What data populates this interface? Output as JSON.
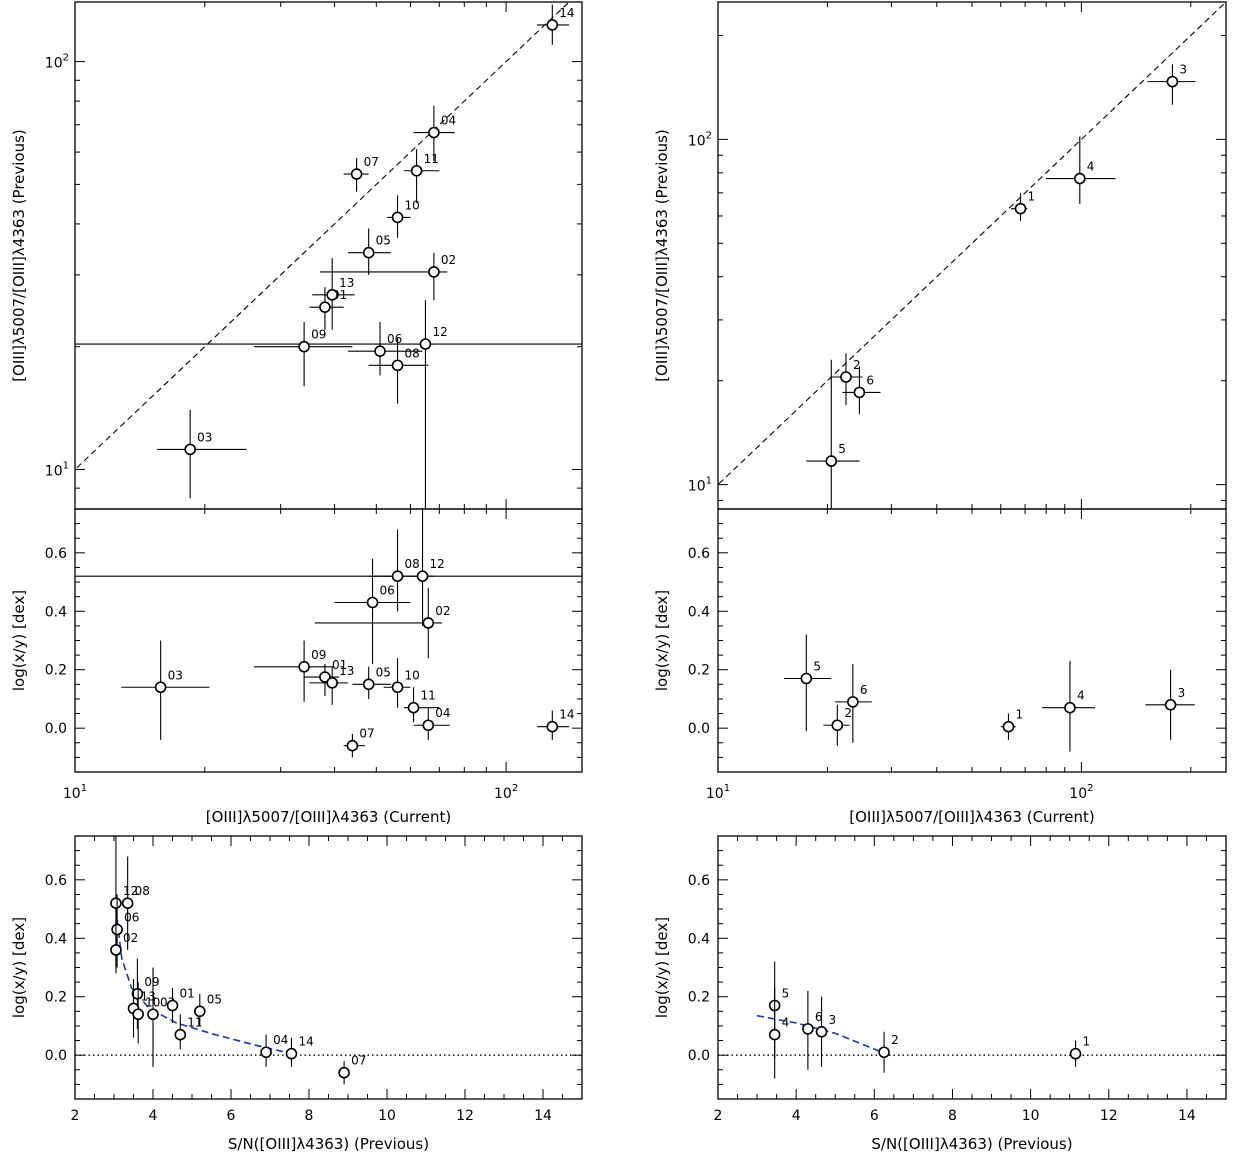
{
  "chart_data": [
    {
      "id": "TL",
      "type": "scatter",
      "xlabel": "",
      "ylabel": "[OIII]λ5007/[OIII]λ4363 (Previous)",
      "xscale": "log",
      "yscale": "log",
      "xlim": [
        10,
        150
      ],
      "ylim": [
        8,
        140
      ],
      "xticks_major": [],
      "xtick_labels": [],
      "yticks_major": [
        10,
        100
      ],
      "ytick_labels": [
        [
          "10",
          "1"
        ],
        [
          "10",
          "2"
        ]
      ],
      "reference_line": "y=x (dashed)",
      "points": [
        {
          "label": "03",
          "x": 18.5,
          "y": 11.2,
          "xlo": 15.5,
          "xhi": 25,
          "ylo": 8.5,
          "yhi": 14
        },
        {
          "label": "09",
          "x": 34,
          "y": 20,
          "xlo": 26,
          "xhi": 44,
          "ylo": 16,
          "yhi": 23
        },
        {
          "label": "06",
          "x": 51,
          "y": 19.5,
          "xlo": 43,
          "xhi": 64,
          "ylo": 17,
          "yhi": 23
        },
        {
          "label": "08",
          "x": 56,
          "y": 18,
          "xlo": 48,
          "xhi": 66,
          "ylo": 14.5,
          "yhi": 21
        },
        {
          "label": "12",
          "x": 65,
          "y": 20.3,
          "xlo": 62,
          "xhi": 68,
          "ylo": 8,
          "yhi": 26
        },
        {
          "label": "01",
          "x": 38,
          "y": 25,
          "xlo": 35,
          "xhi": 42,
          "ylo": 22,
          "yhi": 28
        },
        {
          "label": "13",
          "x": 39.5,
          "y": 26.8,
          "xlo": 35.5,
          "xhi": 44.5,
          "ylo": 22,
          "yhi": 33
        },
        {
          "label": "02",
          "x": 68,
          "y": 30.5,
          "xlo": 37,
          "xhi": 73,
          "ylo": 26,
          "yhi": 34
        },
        {
          "label": "05",
          "x": 48,
          "y": 34,
          "xlo": 43,
          "xhi": 54,
          "ylo": 30,
          "yhi": 39
        },
        {
          "label": "10",
          "x": 56,
          "y": 41.5,
          "xlo": 53,
          "xhi": 60,
          "ylo": 37,
          "yhi": 47
        },
        {
          "label": "07",
          "x": 45,
          "y": 53,
          "xlo": 42,
          "xhi": 48,
          "ylo": 48,
          "yhi": 58
        },
        {
          "label": "11",
          "x": 62,
          "y": 54,
          "xlo": 58,
          "xhi": 70,
          "ylo": 45,
          "yhi": 61
        },
        {
          "label": "04",
          "x": 68,
          "y": 67,
          "xlo": 61,
          "xhi": 76,
          "ylo": 57,
          "yhi": 78
        },
        {
          "label": "14",
          "x": 128,
          "y": 123,
          "xlo": 118,
          "xhi": 140,
          "ylo": 110,
          "yhi": 138
        }
      ]
    },
    {
      "id": "TR",
      "type": "scatter",
      "xlabel": "",
      "ylabel": "[OIII]λ5007/[OIII]λ4363 (Previous)",
      "xscale": "log",
      "yscale": "log",
      "xlim": [
        10,
        250
      ],
      "ylim": [
        8.5,
        250
      ],
      "xticks_major": [],
      "xtick_labels": [],
      "yticks_major": [
        10,
        100
      ],
      "ytick_labels": [
        [
          "10",
          "1"
        ],
        [
          "10",
          "2"
        ]
      ],
      "reference_line": "y=x (dashed)",
      "points": [
        {
          "label": "5",
          "x": 20.5,
          "y": 11.7,
          "xlo": 17.5,
          "xhi": 24.5,
          "ylo": 8.5,
          "yhi": 23
        },
        {
          "label": "2",
          "x": 22.5,
          "y": 20.5,
          "xlo": 20.5,
          "xhi": 25,
          "ylo": 17,
          "yhi": 24
        },
        {
          "label": "6",
          "x": 24.5,
          "y": 18.5,
          "xlo": 22,
          "xhi": 28,
          "ylo": 16,
          "yhi": 22
        },
        {
          "label": "1",
          "x": 68,
          "y": 63,
          "xlo": 64,
          "xhi": 71,
          "ylo": 58,
          "yhi": 70
        },
        {
          "label": "4",
          "x": 99,
          "y": 77,
          "xlo": 80,
          "xhi": 124,
          "ylo": 65,
          "yhi": 102
        },
        {
          "label": "3",
          "x": 178,
          "y": 147,
          "xlo": 152,
          "xhi": 206,
          "ylo": 126,
          "yhi": 165
        }
      ]
    },
    {
      "id": "ML",
      "type": "scatter",
      "xlabel": "[OIII]λ5007/[OIII]λ4363 (Current)",
      "ylabel": "log(x/y) [dex]",
      "xscale": "log",
      "yscale": "linear",
      "xlim": [
        10,
        150
      ],
      "ylim": [
        -0.15,
        0.75
      ],
      "xticks_major": [
        10,
        100
      ],
      "xtick_labels": [
        [
          "10",
          "1"
        ],
        [
          "10",
          "2"
        ]
      ],
      "yticks_major": [
        0.0,
        0.2,
        0.4,
        0.6
      ],
      "ytick_labels": [
        "0.0",
        "0.2",
        "0.4",
        "0.6"
      ],
      "reference_line": "y=0.52 (solid, label 12)",
      "points": [
        {
          "label": "03",
          "x": 15.8,
          "y": 0.14,
          "xlo": 12.8,
          "xhi": 20.5,
          "ylo": -0.04,
          "yhi": 0.3
        },
        {
          "label": "09",
          "x": 34,
          "y": 0.21,
          "xlo": 26,
          "xhi": 40,
          "ylo": 0.09,
          "yhi": 0.3
        },
        {
          "label": "01",
          "x": 38,
          "y": 0.175,
          "xlo": 34,
          "xhi": 41,
          "ylo": 0.11,
          "yhi": 0.22
        },
        {
          "label": "13",
          "x": 39.5,
          "y": 0.155,
          "xlo": 35,
          "xhi": 43,
          "ylo": 0.08,
          "yhi": 0.21
        },
        {
          "label": "05",
          "x": 48,
          "y": 0.15,
          "xlo": 44,
          "xhi": 54,
          "ylo": 0.1,
          "yhi": 0.21
        },
        {
          "label": "10",
          "x": 56,
          "y": 0.14,
          "xlo": 52,
          "xhi": 60,
          "ylo": 0.07,
          "yhi": 0.24
        },
        {
          "label": "11",
          "x": 61,
          "y": 0.07,
          "xlo": 58,
          "xhi": 70,
          "ylo": 0.02,
          "yhi": 0.14
        },
        {
          "label": "04",
          "x": 66,
          "y": 0.01,
          "xlo": 61,
          "xhi": 74,
          "ylo": -0.04,
          "yhi": 0.07
        },
        {
          "label": "07",
          "x": 44,
          "y": -0.06,
          "xlo": 42,
          "xhi": 47,
          "ylo": -0.1,
          "yhi": -0.02
        },
        {
          "label": "06",
          "x": 49,
          "y": 0.43,
          "xlo": 40,
          "xhi": 60,
          "ylo": 0.22,
          "yhi": 0.58
        },
        {
          "label": "02",
          "x": 66,
          "y": 0.36,
          "xlo": 36,
          "xhi": 71,
          "ylo": 0.24,
          "yhi": 0.48
        },
        {
          "label": "08",
          "x": 56,
          "y": 0.52,
          "xlo": 48,
          "xhi": 64,
          "ylo": 0.4,
          "yhi": 0.68
        },
        {
          "label": "12",
          "x": 64,
          "y": 0.52,
          "xlo": 60,
          "xhi": 68,
          "ylo": 0.35,
          "yhi": 0.75
        },
        {
          "label": "14",
          "x": 128,
          "y": 0.005,
          "xlo": 118,
          "xhi": 140,
          "ylo": -0.04,
          "yhi": 0.06
        }
      ]
    },
    {
      "id": "MR",
      "type": "scatter",
      "xlabel": "[OIII]λ5007/[OIII]λ4363 (Current)",
      "ylabel": "log(x/y) [dex]",
      "xscale": "log",
      "yscale": "linear",
      "xlim": [
        10,
        250
      ],
      "ylim": [
        -0.15,
        0.75
      ],
      "xticks_major": [
        10,
        100
      ],
      "xtick_labels": [
        [
          "10",
          "1"
        ],
        [
          "10",
          "2"
        ]
      ],
      "yticks_major": [
        0.0,
        0.2,
        0.4,
        0.6
      ],
      "ytick_labels": [
        "0.0",
        "0.2",
        "0.4",
        "0.6"
      ],
      "reference_line": "",
      "points": [
        {
          "label": "5",
          "x": 17.5,
          "y": 0.17,
          "xlo": 15.2,
          "xhi": 20.5,
          "ylo": -0.01,
          "yhi": 0.32
        },
        {
          "label": "2",
          "x": 21.3,
          "y": 0.01,
          "xlo": 19.5,
          "xhi": 23,
          "ylo": -0.06,
          "yhi": 0.08
        },
        {
          "label": "6",
          "x": 23.5,
          "y": 0.09,
          "xlo": 21,
          "xhi": 26.5,
          "ylo": -0.05,
          "yhi": 0.22
        },
        {
          "label": "1",
          "x": 63,
          "y": 0.005,
          "xlo": 60,
          "xhi": 66,
          "ylo": -0.04,
          "yhi": 0.05
        },
        {
          "label": "4",
          "x": 93,
          "y": 0.07,
          "xlo": 78,
          "xhi": 109,
          "ylo": -0.08,
          "yhi": 0.23
        },
        {
          "label": "3",
          "x": 176,
          "y": 0.08,
          "xlo": 150,
          "xhi": 205,
          "ylo": -0.04,
          "yhi": 0.2
        }
      ]
    },
    {
      "id": "BL",
      "type": "scatter",
      "xlabel": "S/N([OIII]λ4363) (Previous)",
      "ylabel": "log(x/y) [dex]",
      "xscale": "linear",
      "yscale": "linear",
      "xlim": [
        2,
        15
      ],
      "ylim": [
        -0.15,
        0.75
      ],
      "xticks_major": [
        2,
        4,
        6,
        8,
        10,
        12,
        14
      ],
      "xtick_labels": [
        "2",
        "4",
        "6",
        "8",
        "10",
        "12",
        "14"
      ],
      "yticks_major": [
        0.0,
        0.2,
        0.4,
        0.6
      ],
      "ytick_labels": [
        "0.0",
        "0.2",
        "0.4",
        "0.6"
      ],
      "reference_line": "y=0 (dotted)",
      "fit_line": [
        [
          3.05,
          0.5
        ],
        [
          3.2,
          0.33
        ],
        [
          3.45,
          0.23
        ],
        [
          3.9,
          0.16
        ],
        [
          4.6,
          0.11
        ],
        [
          5.6,
          0.07
        ],
        [
          6.6,
          0.035
        ],
        [
          7.4,
          0.01
        ]
      ],
      "points": [
        {
          "label": "12",
          "x": 3.05,
          "y": 0.52,
          "ylo": 0.3,
          "yhi": 0.75
        },
        {
          "label": "08",
          "x": 3.35,
          "y": 0.52,
          "ylo": 0.36,
          "yhi": 0.68
        },
        {
          "label": "06",
          "x": 3.08,
          "y": 0.43,
          "ylo": 0.3,
          "yhi": 0.55
        },
        {
          "label": "02",
          "x": 3.05,
          "y": 0.36,
          "ylo": 0.28,
          "yhi": 0.46
        },
        {
          "label": "09",
          "x": 3.6,
          "y": 0.21,
          "ylo": 0.09,
          "yhi": 0.33
        },
        {
          "label": "13",
          "x": 3.5,
          "y": 0.16,
          "ylo": 0.06,
          "yhi": 0.26
        },
        {
          "label": "10",
          "x": 3.62,
          "y": 0.14,
          "ylo": 0.04,
          "yhi": 0.25
        },
        {
          "label": "03",
          "x": 4.0,
          "y": 0.14,
          "ylo": -0.04,
          "yhi": 0.3
        },
        {
          "label": "01",
          "x": 4.5,
          "y": 0.17,
          "ylo": 0.11,
          "yhi": 0.23
        },
        {
          "label": "11",
          "x": 4.7,
          "y": 0.07,
          "ylo": 0.02,
          "yhi": 0.14
        },
        {
          "label": "05",
          "x": 5.2,
          "y": 0.15,
          "ylo": 0.1,
          "yhi": 0.21
        },
        {
          "label": "04",
          "x": 6.9,
          "y": 0.01,
          "ylo": -0.04,
          "yhi": 0.07
        },
        {
          "label": "14",
          "x": 7.55,
          "y": 0.005,
          "ylo": -0.04,
          "yhi": 0.06
        },
        {
          "label": "07",
          "x": 8.9,
          "y": -0.06,
          "ylo": -0.1,
          "yhi": -0.02
        }
      ]
    },
    {
      "id": "BR",
      "type": "scatter",
      "xlabel": "S/N([OIII]λ4363) (Previous)",
      "ylabel": "log(x/y) [dex]",
      "xscale": "linear",
      "yscale": "linear",
      "xlim": [
        2,
        15
      ],
      "ylim": [
        -0.15,
        0.75
      ],
      "xticks_major": [
        2,
        4,
        6,
        8,
        10,
        12,
        14
      ],
      "xtick_labels": [
        "2",
        "4",
        "6",
        "8",
        "10",
        "12",
        "14"
      ],
      "yticks_major": [
        0.0,
        0.2,
        0.4,
        0.6
      ],
      "ytick_labels": [
        "0.0",
        "0.2",
        "0.4",
        "0.6"
      ],
      "reference_line": "y=0 (dotted)",
      "fit_line": [
        [
          3.0,
          0.135
        ],
        [
          4.0,
          0.11
        ],
        [
          5.0,
          0.075
        ],
        [
          6.2,
          0.01
        ]
      ],
      "points": [
        {
          "label": "5",
          "x": 3.45,
          "y": 0.17,
          "ylo": -0.01,
          "yhi": 0.32
        },
        {
          "label": "4",
          "x": 3.45,
          "y": 0.07,
          "ylo": -0.08,
          "yhi": 0.23
        },
        {
          "label": "6",
          "x": 4.3,
          "y": 0.09,
          "ylo": -0.05,
          "yhi": 0.22
        },
        {
          "label": "3",
          "x": 4.65,
          "y": 0.08,
          "ylo": -0.04,
          "yhi": 0.2
        },
        {
          "label": "2",
          "x": 6.25,
          "y": 0.01,
          "ylo": -0.06,
          "yhi": 0.08
        },
        {
          "label": "1",
          "x": 11.15,
          "y": 0.005,
          "ylo": -0.04,
          "yhi": 0.05
        }
      ]
    }
  ]
}
